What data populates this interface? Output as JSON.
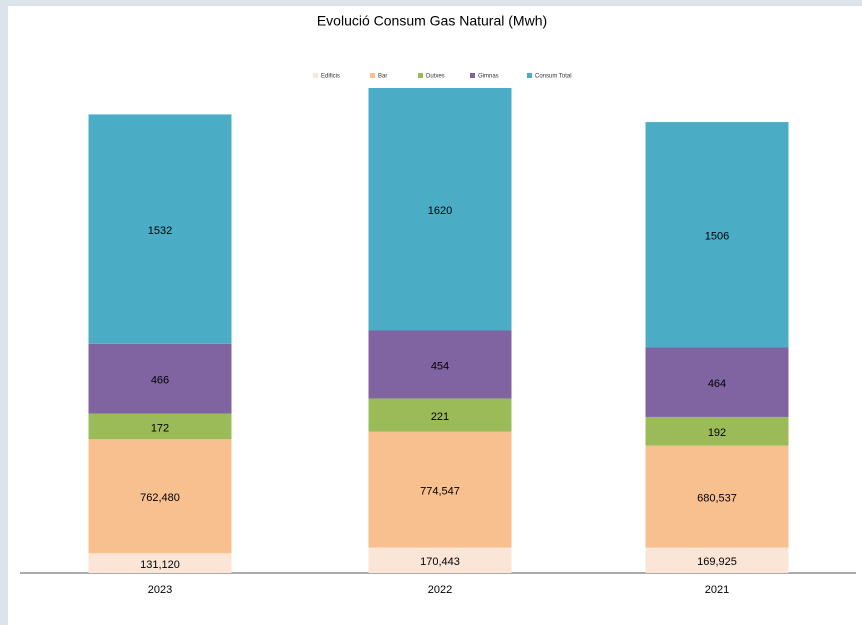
{
  "chart_data": {
    "type": "stacked_bar",
    "title": "Evolució Consum Gas Natural (Mwh)",
    "categories": [
      "2023",
      "2022",
      "2021"
    ],
    "series": [
      {
        "name": "Edificis",
        "color": "#fbe5d6",
        "values": [
          131.12,
          170.443,
          169.925
        ],
        "value_labels": [
          "131,120",
          "170,443",
          "169,925"
        ]
      },
      {
        "name": "Bar",
        "color": "#f8bf8f",
        "values": [
          762.48,
          774.547,
          680.537
        ],
        "value_labels": [
          "762,480",
          "774,547",
          "680,537"
        ]
      },
      {
        "name": "Dutxes",
        "color": "#9bbb59",
        "values": [
          172,
          221,
          192
        ]
      },
      {
        "name": "Gimnas",
        "color": "#8064a2",
        "values": [
          466,
          454,
          464
        ]
      },
      {
        "name": "Consum Total",
        "color": "#4bacc6",
        "values": [
          1532,
          1620,
          1506
        ]
      }
    ]
  }
}
